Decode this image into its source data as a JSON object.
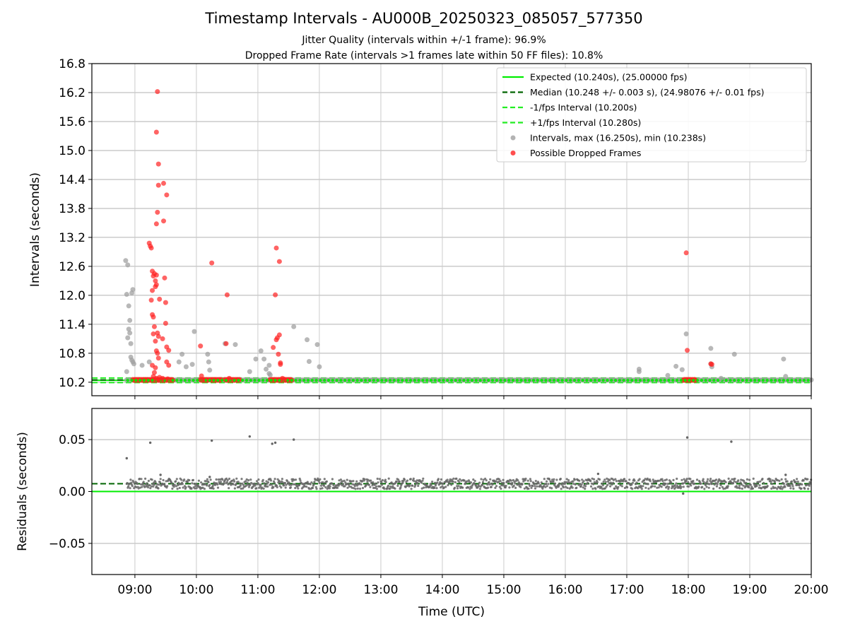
{
  "title": "Timestamp Intervals - AU000B_20250323_085057_577350",
  "subtitle1": "Jitter Quality (intervals within +/-1 frame): 96.9%",
  "subtitle2": "Dropped Frame Rate (intervals >1 frames late within 50 FF files): 10.8%",
  "colors": {
    "expected": "#00ee00",
    "median": "#006400",
    "interval_band": "#22ee22",
    "intervals": "#a0a0a0",
    "dropped": "#ff2222",
    "residuals": "#666666",
    "grid": "#b0b0b0"
  },
  "chart_data": [
    {
      "type": "scatter",
      "panel": "top",
      "xlabel": "",
      "ylabel": "Intervals (seconds)",
      "xlim": [
        "08:18",
        "20:00"
      ],
      "ylim": [
        9.92,
        16.8
      ],
      "yticks": [
        "10.2",
        "10.8",
        "11.4",
        "12.0",
        "12.6",
        "13.2",
        "13.8",
        "14.4",
        "15.0",
        "15.6",
        "16.2",
        "16.8"
      ],
      "grid": true,
      "legend_placement": "top-right",
      "legend": [
        "Expected (10.240s), (25.00000 fps)",
        "Median (10.248 +/- 0.003 s), (24.98076 +/- 0.01 fps)",
        "-1/fps Interval (10.200s)",
        "+1/fps Interval (10.280s)",
        "Intervals, max (16.250s), min (10.238s)",
        "Possible Dropped Frames"
      ],
      "lines": {
        "expected": 10.24,
        "median": 10.248,
        "minus_one_frame": 10.2,
        "plus_one_frame": 10.28
      },
      "baseline_run_x": [
        "08:52",
        "20:00"
      ],
      "baseline_dropped_runs": [
        [
          "08:58",
          "09:37"
        ],
        [
          "10:04",
          "10:12"
        ],
        [
          "10:14",
          "10:24"
        ],
        [
          "10:28",
          "10:42"
        ],
        [
          "11:12",
          "11:33"
        ],
        [
          "17:55",
          "18:07"
        ]
      ],
      "series": [
        {
          "name": "Intervals, max (16.250s), min (10.238s)",
          "points": [
            [
              "08:51",
              12.72
            ],
            [
              "08:52",
              12.02
            ],
            [
              "08:53",
              12.63
            ],
            [
              "08:54",
              11.78
            ],
            [
              "08:53",
              11.12
            ],
            [
              "08:55",
              11.48
            ],
            [
              "08:55",
              11.22
            ],
            [
              "08:54",
              11.3
            ],
            [
              "08:56",
              11.0
            ],
            [
              "08:57",
              12.05
            ],
            [
              "08:58",
              12.12
            ],
            [
              "08:56",
              10.72
            ],
            [
              "08:57",
              10.66
            ],
            [
              "08:58",
              10.62
            ],
            [
              "08:59",
              10.58
            ],
            [
              "08:52",
              10.42
            ],
            [
              "09:07",
              10.55
            ],
            [
              "09:14",
              10.62
            ],
            [
              "09:43",
              10.62
            ],
            [
              "09:46",
              10.78
            ],
            [
              "09:50",
              10.52
            ],
            [
              "09:56",
              10.57
            ],
            [
              "09:58",
              11.25
            ],
            [
              "10:11",
              10.78
            ],
            [
              "10:12",
              10.62
            ],
            [
              "10:13",
              10.45
            ],
            [
              "10:28",
              11.0
            ],
            [
              "10:38",
              10.98
            ],
            [
              "10:52",
              10.42
            ],
            [
              "10:58",
              10.68
            ],
            [
              "11:03",
              10.85
            ],
            [
              "11:06",
              10.68
            ],
            [
              "11:08",
              10.47
            ],
            [
              "11:11",
              10.55
            ],
            [
              "11:11",
              10.38
            ],
            [
              "11:12",
              10.35
            ],
            [
              "11:35",
              11.35
            ],
            [
              "11:48",
              11.08
            ],
            [
              "11:50",
              10.63
            ],
            [
              "11:58",
              10.98
            ],
            [
              "12:00",
              10.52
            ],
            [
              "17:12",
              10.47
            ],
            [
              "17:12",
              10.42
            ],
            [
              "17:40",
              10.34
            ],
            [
              "17:48",
              10.53
            ],
            [
              "17:54",
              10.46
            ],
            [
              "17:58",
              11.2
            ],
            [
              "18:22",
              10.9
            ],
            [
              "18:22",
              10.58
            ],
            [
              "18:23",
              10.52
            ],
            [
              "18:32",
              10.28
            ],
            [
              "18:45",
              10.78
            ],
            [
              "19:33",
              10.68
            ],
            [
              "19:35",
              10.32
            ]
          ]
        },
        {
          "name": "Possible Dropped Frames",
          "points": [
            [
              "09:14",
              13.08
            ],
            [
              "09:15",
              13.02
            ],
            [
              "09:16",
              12.98
            ],
            [
              "09:17",
              12.5
            ],
            [
              "09:18",
              12.4
            ],
            [
              "09:19",
              12.45
            ],
            [
              "09:20",
              12.3
            ],
            [
              "09:21",
              12.42
            ],
            [
              "09:21",
              12.22
            ],
            [
              "09:20",
              12.18
            ],
            [
              "09:17",
              12.1
            ],
            [
              "09:16",
              11.9
            ],
            [
              "09:17",
              11.6
            ],
            [
              "09:18",
              11.55
            ],
            [
              "09:19",
              11.35
            ],
            [
              "09:18",
              11.2
            ],
            [
              "09:20",
              11.05
            ],
            [
              "09:22",
              11.22
            ],
            [
              "09:23",
              11.15
            ],
            [
              "09:21",
              10.85
            ],
            [
              "09:22",
              10.8
            ],
            [
              "09:23",
              10.7
            ],
            [
              "09:20",
              10.5
            ],
            [
              "09:19",
              10.4
            ],
            [
              "09:17",
              10.55
            ],
            [
              "09:18",
              10.32
            ],
            [
              "09:21",
              10.28
            ],
            [
              "09:24",
              10.3
            ],
            [
              "09:23",
              10.25
            ],
            [
              "09:22",
              16.22
            ],
            [
              "09:21",
              15.38
            ],
            [
              "09:23",
              14.72
            ],
            [
              "09:23",
              14.28
            ],
            [
              "09:28",
              14.32
            ],
            [
              "09:31",
              14.08
            ],
            [
              "09:22",
              13.72
            ],
            [
              "09:21",
              13.48
            ],
            [
              "09:28",
              13.54
            ],
            [
              "09:24",
              11.92
            ],
            [
              "09:27",
              11.1
            ],
            [
              "09:29",
              12.36
            ],
            [
              "09:30",
              11.85
            ],
            [
              "09:30",
              11.42
            ],
            [
              "09:31",
              10.93
            ],
            [
              "09:33",
              10.86
            ],
            [
              "09:31",
              10.62
            ],
            [
              "09:33",
              10.55
            ],
            [
              "09:27",
              10.28
            ],
            [
              "09:32",
              10.27
            ],
            [
              "10:04",
              10.95
            ],
            [
              "10:05",
              10.33
            ],
            [
              "10:06",
              10.25
            ],
            [
              "10:15",
              12.67
            ],
            [
              "10:30",
              12.01
            ],
            [
              "10:29",
              11.0
            ],
            [
              "10:32",
              10.28
            ],
            [
              "11:15",
              10.92
            ],
            [
              "11:18",
              11.08
            ],
            [
              "11:19",
              11.12
            ],
            [
              "11:21",
              11.18
            ],
            [
              "11:20",
              10.78
            ],
            [
              "11:22",
              10.6
            ],
            [
              "11:22",
              10.57
            ],
            [
              "11:17",
              12.01
            ],
            [
              "11:18",
              12.98
            ],
            [
              "11:21",
              12.7
            ],
            [
              "11:24",
              10.28
            ],
            [
              "11:26",
              10.26
            ],
            [
              "17:58",
              12.88
            ],
            [
              "17:59",
              10.86
            ],
            [
              "18:22",
              10.58
            ],
            [
              "18:23",
              10.57
            ]
          ]
        }
      ]
    },
    {
      "type": "scatter",
      "panel": "bottom",
      "xlabel": "Time (UTC)",
      "ylabel": "Residuals (seconds)",
      "xlim": [
        "08:18",
        "20:00"
      ],
      "ylim": [
        -0.08,
        0.08
      ],
      "yticks": [
        "−0.05",
        "0.00",
        "0.05"
      ],
      "ytick_values": [
        -0.05,
        0,
        0.05
      ],
      "xticks": [
        "09:00",
        "10:00",
        "11:00",
        "12:00",
        "13:00",
        "14:00",
        "15:00",
        "16:00",
        "17:00",
        "18:00",
        "19:00",
        "20:00"
      ],
      "grid": true,
      "lines": {
        "expected": 0.0,
        "median": 0.0075
      },
      "residual_band": {
        "x_range": [
          "08:52",
          "20:00"
        ],
        "center": 0.0075,
        "halfwidth": 0.005
      },
      "series": [
        {
          "name": "",
          "points": [
            [
              "08:52",
              0.032
            ],
            [
              "09:15",
              0.047
            ],
            [
              "10:15",
              0.049
            ],
            [
              "10:52",
              0.053
            ],
            [
              "11:14",
              0.046
            ],
            [
              "11:17",
              0.047
            ],
            [
              "11:35",
              0.05
            ],
            [
              "17:59",
              0.052
            ],
            [
              "18:42",
              0.048
            ],
            [
              "09:25",
              0.016
            ],
            [
              "10:13",
              0.014
            ],
            [
              "16:32",
              0.017
            ],
            [
              "17:55",
              -0.002
            ],
            [
              "19:35",
              0.016
            ]
          ]
        }
      ]
    }
  ]
}
